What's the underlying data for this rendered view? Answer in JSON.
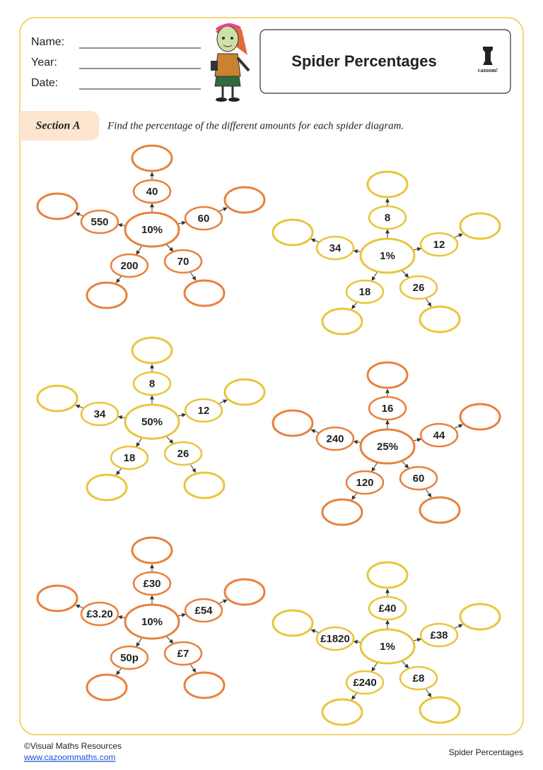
{
  "header": {
    "fields": [
      "Name:",
      "Year:",
      "Date:"
    ],
    "title": "Spider Percentages",
    "logo": "cazoom!"
  },
  "section": {
    "label": "Section A",
    "instruction": "Find the percentage of the different amounts for each spider diagram."
  },
  "spiders": [
    {
      "center": "10%",
      "color": "#e8813c",
      "amounts": [
        "40",
        "60",
        "70",
        "200",
        "550"
      ]
    },
    {
      "center": "1%",
      "color": "#e9c53c",
      "amounts": [
        "8",
        "12",
        "26",
        "18",
        "34"
      ]
    },
    {
      "center": "50%",
      "color": "#e9c53c",
      "amounts": [
        "8",
        "12",
        "26",
        "18",
        "34"
      ]
    },
    {
      "center": "25%",
      "color": "#e8813c",
      "amounts": [
        "16",
        "44",
        "60",
        "120",
        "240"
      ]
    },
    {
      "center": "10%",
      "color": "#e8813c",
      "amounts": [
        "£30",
        "£54",
        "£7",
        "50p",
        "£3.20"
      ]
    },
    {
      "center": "1%",
      "color": "#e9c53c",
      "amounts": [
        "£40",
        "£38",
        "£8",
        "£240",
        "£1820"
      ]
    }
  ],
  "footer": {
    "copyright": "©Visual Maths Resources",
    "website": "www.cazoommaths.com",
    "title": "Spider Percentages"
  }
}
